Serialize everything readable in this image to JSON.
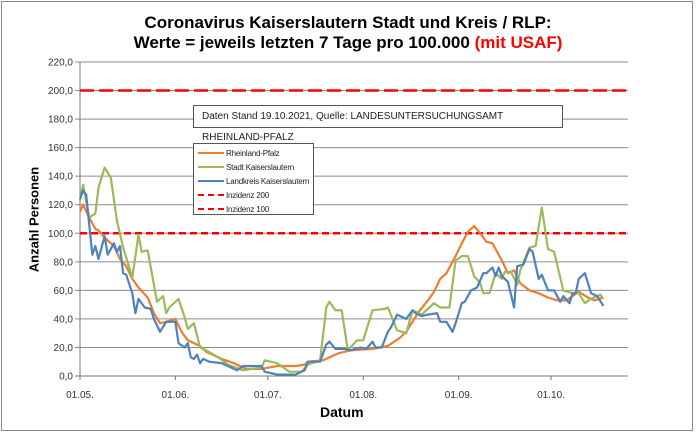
{
  "title": {
    "line1": "Coronavirus Kaiserslautern Stadt und Kreis / RLP:",
    "line2": "Werte = jeweils letzten 7 Tage pro 100.000",
    "line2_red": "(mit USAF)"
  },
  "note": "Daten Stand 19.10.2021, Quelle: LANDESUNTERSUCHUNGSAMT RHEINLAND-PFALZ",
  "chart_data": {
    "type": "line",
    "xlabel": "Datum",
    "ylabel": "Anzahl Personen",
    "ylim": [
      0,
      220
    ],
    "yticks": [
      "0,0",
      "20,0",
      "40,0",
      "60,0",
      "80,0",
      "100,0",
      "120,0",
      "140,0",
      "160,0",
      "180,0",
      "200,0",
      "220,0"
    ],
    "xticks": [
      "01.05.",
      "01.06.",
      "01.07.",
      "01.08.",
      "01.09.",
      "01.10."
    ],
    "xlim": [
      "01.05.",
      "26.10."
    ],
    "grid": true,
    "legend_placement": "top-left",
    "reference_lines": [
      {
        "name": "Inzidenz 200",
        "value": 200,
        "color": "#ff0000",
        "style": "long-dash"
      },
      {
        "name": "Inzidenz 100",
        "value": 100,
        "color": "#ff0000",
        "style": "short-dash"
      }
    ],
    "series": [
      {
        "name": "Rheinland-Pfalz",
        "color": "#ed7d31",
        "points": [
          [
            "01.05",
            115
          ],
          [
            "02.05",
            120
          ],
          [
            "04.05",
            111
          ],
          [
            "06.05",
            103
          ],
          [
            "07.05",
            102
          ],
          [
            "09.05",
            97
          ],
          [
            "12.05",
            91
          ],
          [
            "14.05",
            82
          ],
          [
            "16.05",
            77
          ],
          [
            "18.05",
            68
          ],
          [
            "20.05",
            62
          ],
          [
            "23.05",
            55
          ],
          [
            "25.05",
            44
          ],
          [
            "27.05",
            37
          ],
          [
            "29.05",
            38
          ],
          [
            "01.06",
            40
          ],
          [
            "03.06",
            31
          ],
          [
            "05.06",
            25
          ],
          [
            "09.06",
            21
          ],
          [
            "11.06",
            17
          ],
          [
            "16.06",
            12
          ],
          [
            "20.06",
            9
          ],
          [
            "24.06",
            5
          ],
          [
            "29.06",
            5
          ],
          [
            "04.07",
            7
          ],
          [
            "10.07",
            7
          ],
          [
            "13.07",
            8
          ],
          [
            "14.07",
            10
          ],
          [
            "19.07",
            11
          ],
          [
            "22.07",
            14
          ],
          [
            "24.07",
            16
          ],
          [
            "28.07",
            18
          ],
          [
            "04.08",
            19
          ],
          [
            "09.08",
            21
          ],
          [
            "13.08",
            27
          ],
          [
            "15.08",
            31
          ],
          [
            "17.08",
            38
          ],
          [
            "19.08",
            45
          ],
          [
            "22.08",
            53
          ],
          [
            "24.08",
            59
          ],
          [
            "26.08",
            68
          ],
          [
            "28.08",
            72
          ],
          [
            "31.08",
            84
          ],
          [
            "02.09",
            93
          ],
          [
            "04.09",
            101
          ],
          [
            "06.09",
            105
          ],
          [
            "08.09",
            100
          ],
          [
            "10.09",
            94
          ],
          [
            "12.09",
            93
          ],
          [
            "15.09",
            81
          ],
          [
            "17.09",
            72
          ],
          [
            "19.09",
            74
          ],
          [
            "21.09",
            65
          ],
          [
            "24.09",
            60
          ],
          [
            "27.09",
            58
          ],
          [
            "30.09",
            55
          ],
          [
            "03.10",
            53
          ],
          [
            "06.10",
            53
          ],
          [
            "10.10",
            59
          ],
          [
            "13.10",
            55
          ],
          [
            "15.10",
            53
          ],
          [
            "18.10",
            55
          ]
        ]
      },
      {
        "name": "Stadt Kaiserslautern",
        "color": "#9bbb59",
        "points": [
          [
            "01.05",
            123
          ],
          [
            "02.05",
            134
          ],
          [
            "04.05",
            111
          ],
          [
            "06.05",
            114
          ],
          [
            "07.05",
            132
          ],
          [
            "09.05",
            146
          ],
          [
            "11.05",
            139
          ],
          [
            "13.05",
            109
          ],
          [
            "15.05",
            90
          ],
          [
            "18.05",
            69
          ],
          [
            "20.05",
            99
          ],
          [
            "21.05",
            87
          ],
          [
            "23.05",
            88
          ],
          [
            "26.05",
            52
          ],
          [
            "28.05",
            56
          ],
          [
            "29.05",
            44
          ],
          [
            "30.05",
            48
          ],
          [
            "02.06",
            54
          ],
          [
            "04.06",
            41
          ],
          [
            "05.06",
            33
          ],
          [
            "07.06",
            37
          ],
          [
            "09.06",
            20
          ],
          [
            "11.06",
            18
          ],
          [
            "15.06",
            13
          ],
          [
            "18.06",
            8
          ],
          [
            "23.06",
            4
          ],
          [
            "29.06",
            6
          ],
          [
            "30.06",
            11
          ],
          [
            "04.07",
            9
          ],
          [
            "08.07",
            3
          ],
          [
            "12.07",
            3
          ],
          [
            "14.07",
            8
          ],
          [
            "18.07",
            11
          ],
          [
            "20.07",
            48
          ],
          [
            "21.07",
            52
          ],
          [
            "23.07",
            46
          ],
          [
            "25.07",
            46
          ],
          [
            "27.07",
            18
          ],
          [
            "30.07",
            25
          ],
          [
            "01.08",
            25
          ],
          [
            "04.08",
            46
          ],
          [
            "08.08",
            47
          ],
          [
            "09.08",
            48
          ],
          [
            "12.08",
            32
          ],
          [
            "15.08",
            30
          ],
          [
            "17.08",
            46
          ],
          [
            "20.08",
            43
          ],
          [
            "24.08",
            51
          ],
          [
            "26.08",
            48
          ],
          [
            "29.08",
            48
          ],
          [
            "31.08",
            81
          ],
          [
            "02.09",
            84
          ],
          [
            "04.09",
            84
          ],
          [
            "06.09",
            70
          ],
          [
            "08.09",
            65
          ],
          [
            "09.09",
            58
          ],
          [
            "11.09",
            58
          ],
          [
            "13.09",
            72
          ],
          [
            "15.09",
            68
          ],
          [
            "16.09",
            73
          ],
          [
            "18.09",
            73
          ],
          [
            "20.09",
            64
          ],
          [
            "21.09",
            74
          ],
          [
            "24.09",
            90
          ],
          [
            "26.09",
            91
          ],
          [
            "28.09",
            118
          ],
          [
            "30.09",
            89
          ],
          [
            "02.10",
            87
          ],
          [
            "05.10",
            60
          ],
          [
            "08.10",
            58
          ],
          [
            "10.10",
            58
          ],
          [
            "12.10",
            51
          ],
          [
            "14.10",
            54
          ],
          [
            "17.10",
            57
          ],
          [
            "18.10",
            54
          ]
        ]
      },
      {
        "name": "Landkreis Kaiserslautern",
        "color": "#4f81bd",
        "points": [
          [
            "01.05",
            124
          ],
          [
            "02.05",
            130
          ],
          [
            "03.05",
            127
          ],
          [
            "05.05",
            85
          ],
          [
            "06.05",
            91
          ],
          [
            "07.05",
            82
          ],
          [
            "09.05",
            98
          ],
          [
            "10.05",
            85
          ],
          [
            "12.05",
            93
          ],
          [
            "13.05",
            87
          ],
          [
            "14.05",
            91
          ],
          [
            "15.05",
            72
          ],
          [
            "16.05",
            71
          ],
          [
            "18.05",
            58
          ],
          [
            "19.05",
            44
          ],
          [
            "20.05",
            54
          ],
          [
            "22.05",
            48
          ],
          [
            "24.05",
            47
          ],
          [
            "25.05",
            40
          ],
          [
            "27.05",
            31
          ],
          [
            "29.05",
            38
          ],
          [
            "01.06",
            38
          ],
          [
            "02.06",
            23
          ],
          [
            "04.06",
            20
          ],
          [
            "05.06",
            23
          ],
          [
            "06.06",
            13
          ],
          [
            "07.06",
            12
          ],
          [
            "08.06",
            15
          ],
          [
            "09.06",
            9
          ],
          [
            "10.06",
            12
          ],
          [
            "12.06",
            10
          ],
          [
            "16.06",
            9
          ],
          [
            "18.06",
            7
          ],
          [
            "21.06",
            4
          ],
          [
            "23.06",
            7
          ],
          [
            "29.06",
            7
          ],
          [
            "30.06",
            3
          ],
          [
            "04.07",
            1
          ],
          [
            "10.07",
            1
          ],
          [
            "13.07",
            4
          ],
          [
            "14.07",
            10
          ],
          [
            "18.07",
            10
          ],
          [
            "20.07",
            22
          ],
          [
            "21.07",
            24
          ],
          [
            "23.07",
            19
          ],
          [
            "26.07",
            19
          ],
          [
            "28.07",
            18
          ],
          [
            "31.07",
            20
          ],
          [
            "02.08",
            19
          ],
          [
            "04.08",
            24
          ],
          [
            "05.08",
            20
          ],
          [
            "07.08",
            20
          ],
          [
            "09.08",
            31
          ],
          [
            "10.08",
            34
          ],
          [
            "12.08",
            43
          ],
          [
            "13.08",
            42
          ],
          [
            "15.08",
            40
          ],
          [
            "17.08",
            46
          ],
          [
            "18.08",
            44
          ],
          [
            "19.08",
            43
          ],
          [
            "20.08",
            42
          ],
          [
            "22.08",
            43
          ],
          [
            "25.08",
            44
          ],
          [
            "26.08",
            38
          ],
          [
            "28.08",
            38
          ],
          [
            "30.08",
            31
          ],
          [
            "31.08",
            37
          ],
          [
            "02.09",
            51
          ],
          [
            "03.09",
            52
          ],
          [
            "05.09",
            60
          ],
          [
            "07.09",
            62
          ],
          [
            "09.09",
            72
          ],
          [
            "10.09",
            72
          ],
          [
            "12.09",
            76
          ],
          [
            "13.09",
            70
          ],
          [
            "14.09",
            76
          ],
          [
            "15.09",
            70
          ],
          [
            "17.09",
            66
          ],
          [
            "19.09",
            48
          ],
          [
            "20.09",
            77
          ],
          [
            "22.09",
            78
          ],
          [
            "24.09",
            89
          ],
          [
            "25.09",
            87
          ],
          [
            "27.09",
            68
          ],
          [
            "28.09",
            71
          ],
          [
            "30.09",
            60
          ],
          [
            "02.10",
            60
          ],
          [
            "04.10",
            52
          ],
          [
            "05.10",
            56
          ],
          [
            "07.10",
            51
          ],
          [
            "08.10",
            58
          ],
          [
            "09.10",
            58
          ],
          [
            "10.10",
            68
          ],
          [
            "12.10",
            72
          ],
          [
            "14.10",
            58
          ],
          [
            "16.10",
            56
          ],
          [
            "18.10",
            49
          ]
        ]
      }
    ]
  }
}
